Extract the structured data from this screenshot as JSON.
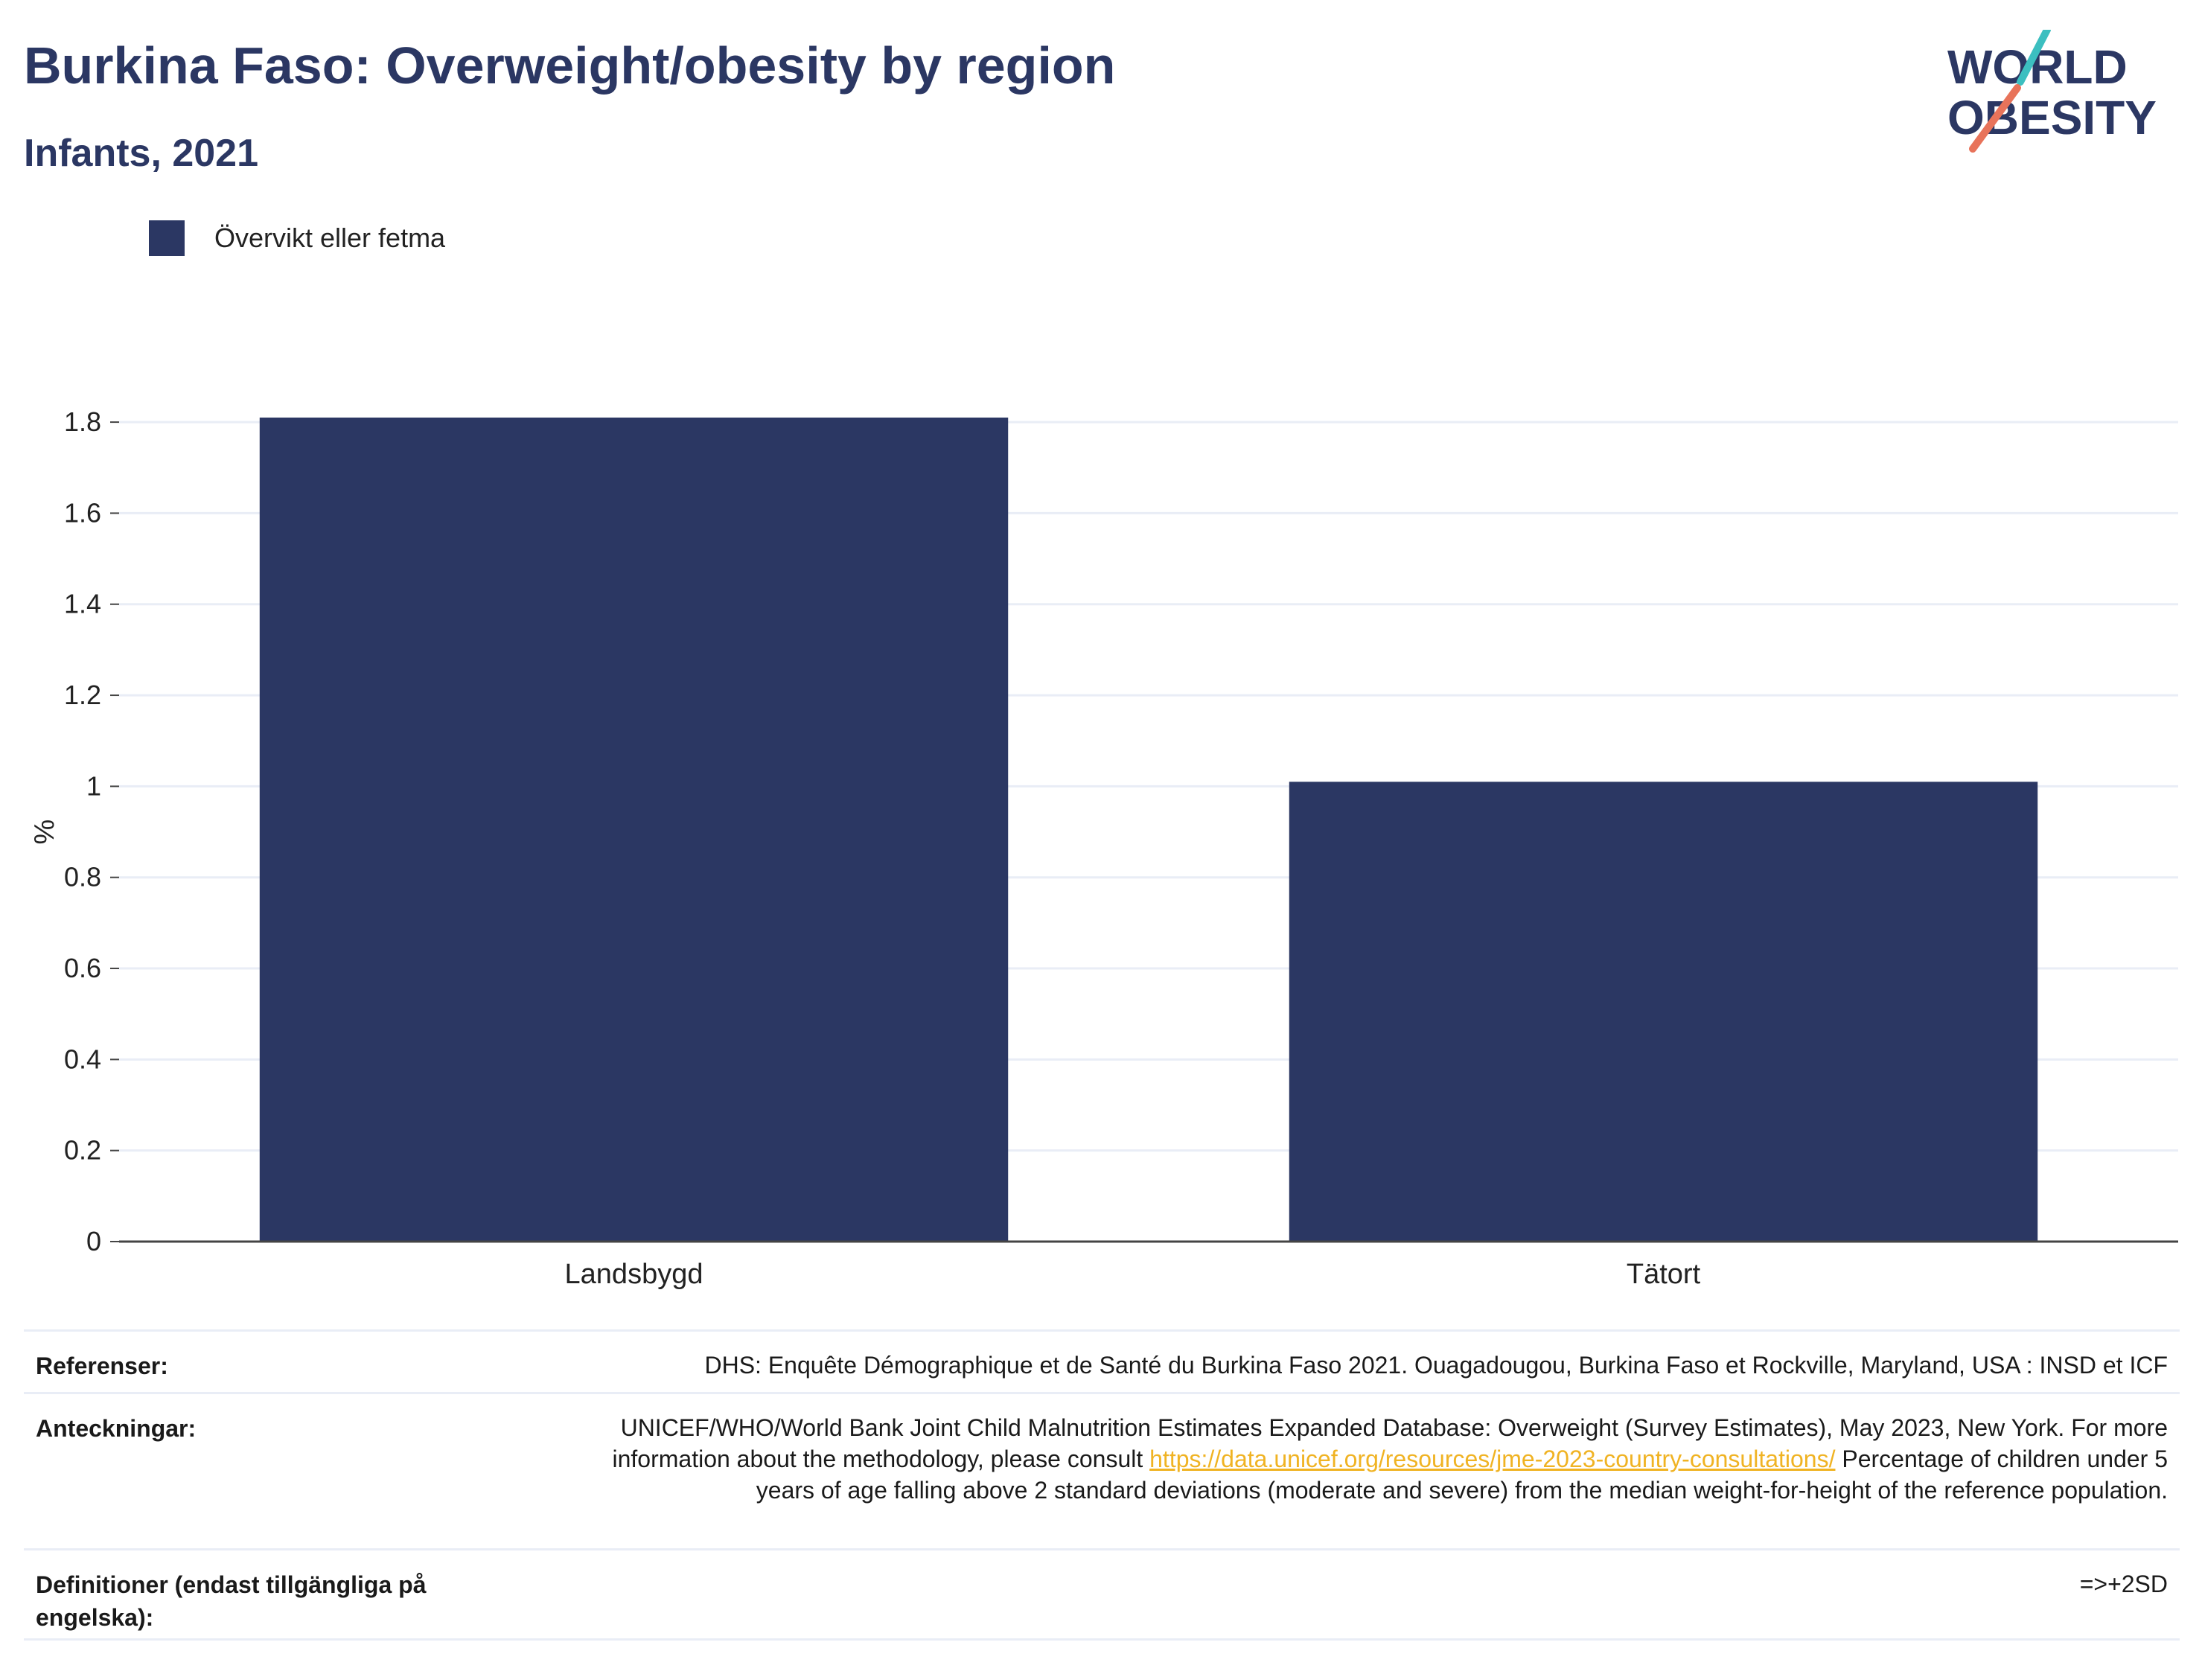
{
  "header": {
    "title": "Burkina Faso: Overweight/obesity by region",
    "subtitle": "Infants, 2021"
  },
  "logo": {
    "line1": "WORLD",
    "line2": "OBESITY"
  },
  "colors": {
    "bar": "#2b3763",
    "title": "#2b3763",
    "link": "#f0b323",
    "grid": "#e9edf6"
  },
  "chart_data": {
    "type": "bar",
    "categories": [
      "Landsbygd",
      "Tätort"
    ],
    "series": [
      {
        "name": "Övervikt eller fetma",
        "values": [
          1.81,
          1.01
        ]
      }
    ],
    "ylabel": "%",
    "ylim": [
      0,
      1.8
    ],
    "yticks": [
      "0",
      "0.2",
      "0.4",
      "0.6",
      "0.8",
      "1",
      "1.2",
      "1.4",
      "1.6",
      "1.8"
    ],
    "grid": true,
    "legend_position": "top-left"
  },
  "notes": {
    "references_label": "Referenser:",
    "references_text": "DHS: Enquête Démographique et de Santé du Burkina Faso 2021. Ouagadougou, Burkina Faso et Rockville, Maryland, USA : INSD et ICF",
    "notes_label": "Anteckningar:",
    "notes_text_1": "UNICEF/WHO/World Bank Joint Child Malnutrition Estimates Expanded Database: Overweight (Survey Estimates), May 2023, New York. For more information about the methodology, please consult",
    "notes_link": "https://data.unicef.org/resources/jme-2023-country-consultations/",
    "notes_text_2": "Percentage of children under 5 years of age falling above 2 standard deviations (moderate and severe) from the median weight-for-height of the reference population.",
    "definitions_label": "Definitioner (endast tillgängliga på engelska):",
    "definitions_text": "=>+2SD"
  }
}
